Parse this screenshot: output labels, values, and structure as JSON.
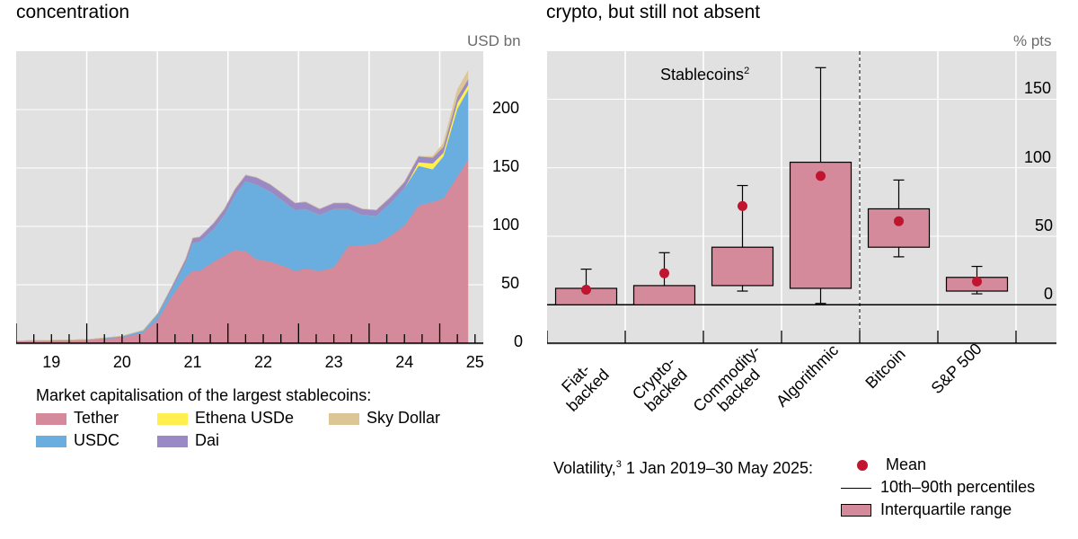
{
  "left_header": "concentration",
  "right_header": "crypto, but still not absent",
  "chart_data": [
    {
      "type": "area",
      "ylabel": "USD bn",
      "ylim": [
        0,
        250
      ],
      "yticks": [
        0,
        50,
        100,
        150,
        200
      ],
      "xticks": [
        "19",
        "20",
        "21",
        "22",
        "23",
        "24",
        "25"
      ],
      "legend_title": "Market capitalisation of the largest stablecoins:",
      "x": [
        2018.5,
        2019.5,
        2020.0,
        2020.3,
        2020.5,
        2020.7,
        2020.9,
        2021.0,
        2021.1,
        2021.3,
        2021.45,
        2021.6,
        2021.75,
        2021.9,
        2022.1,
        2022.3,
        2022.45,
        2022.6,
        2022.8,
        2023.0,
        2023.2,
        2023.4,
        2023.6,
        2023.8,
        2024.0,
        2024.2,
        2024.4,
        2024.55,
        2024.75,
        2024.9
      ],
      "series": [
        {
          "name": "Tether",
          "color": "#d48a9a",
          "values": [
            2,
            3,
            5,
            9,
            20,
            40,
            57,
            62,
            62,
            70,
            75,
            80,
            79,
            72,
            70,
            66,
            62,
            64,
            62,
            65,
            83,
            84,
            85,
            92,
            101,
            118,
            121,
            124,
            143,
            157
          ]
        },
        {
          "name": "USDC",
          "color": "#6aaedf",
          "values": [
            0,
            0,
            1,
            2,
            4,
            6,
            12,
            24,
            25,
            28,
            35,
            47,
            60,
            64,
            60,
            55,
            52,
            51,
            48,
            50,
            32,
            26,
            24,
            28,
            32,
            34,
            28,
            36,
            58,
            60
          ]
        },
        {
          "name": "Ethena USDe",
          "color": "#fff04f",
          "values": [
            0,
            0,
            0,
            0,
            0,
            0,
            0,
            0,
            0,
            0,
            0,
            0,
            0,
            0,
            0,
            0,
            0,
            0,
            0,
            0,
            0,
            0,
            0,
            0,
            0,
            3,
            5,
            3,
            5,
            4
          ]
        },
        {
          "name": "Dai",
          "color": "#9a89c4",
          "values": [
            0,
            0,
            0,
            0,
            1,
            2,
            3,
            4,
            4,
            5,
            5,
            5,
            5,
            6,
            6,
            6,
            6,
            6,
            5,
            5,
            5,
            5,
            5,
            5,
            5,
            5,
            5,
            5,
            5,
            5
          ]
        },
        {
          "name": "Sky Dollar",
          "color": "#dcc695",
          "values": [
            0,
            0,
            0,
            0,
            0,
            0,
            0,
            0,
            0,
            0,
            0,
            0,
            0,
            0,
            0,
            0,
            0,
            0,
            0,
            0,
            0,
            0,
            0,
            0,
            0,
            0,
            1,
            3,
            6,
            7
          ]
        }
      ]
    },
    {
      "type": "box",
      "annotation": "Stablecoins",
      "annotation_sup": "2",
      "ylabel": "% pts",
      "ylim": [
        -28,
        185
      ],
      "yticks": [
        0,
        50,
        100,
        150
      ],
      "categories": [
        "Fiat-\nbacked",
        "Crypto-\nbacked",
        "Commodity-\nbacked",
        "Algorithmic",
        "Bitcoin",
        "S&P 500"
      ],
      "boxes": [
        {
          "p10": 1,
          "q1": 0,
          "q3": 12,
          "p90": 26,
          "mean": 11
        },
        {
          "p10": 1,
          "q1": 0,
          "q3": 14,
          "p90": 38,
          "mean": 23
        },
        {
          "p10": 10,
          "q1": 14,
          "q3": 42,
          "p90": 87,
          "mean": 72
        },
        {
          "p10": 1,
          "q1": 12,
          "q3": 104,
          "p90": 173,
          "mean": 94
        },
        {
          "p10": 35,
          "q1": 42,
          "q3": 70,
          "p90": 91,
          "mean": 61
        },
        {
          "p10": 8,
          "q1": 10,
          "q3": 20,
          "p90": 28,
          "mean": 17
        }
      ],
      "legend_title": "Volatility,",
      "legend_title_sup": "3",
      "legend_period": "1 Jan 2019–30 May 2025:",
      "legend_items": [
        "Mean",
        "10th–90th percentiles",
        "Interquartile range"
      ],
      "colors": {
        "box": "#d48a9a",
        "mean": "#c0142f",
        "bg": "#e1e1e1",
        "grid": "#ffffff"
      }
    }
  ]
}
